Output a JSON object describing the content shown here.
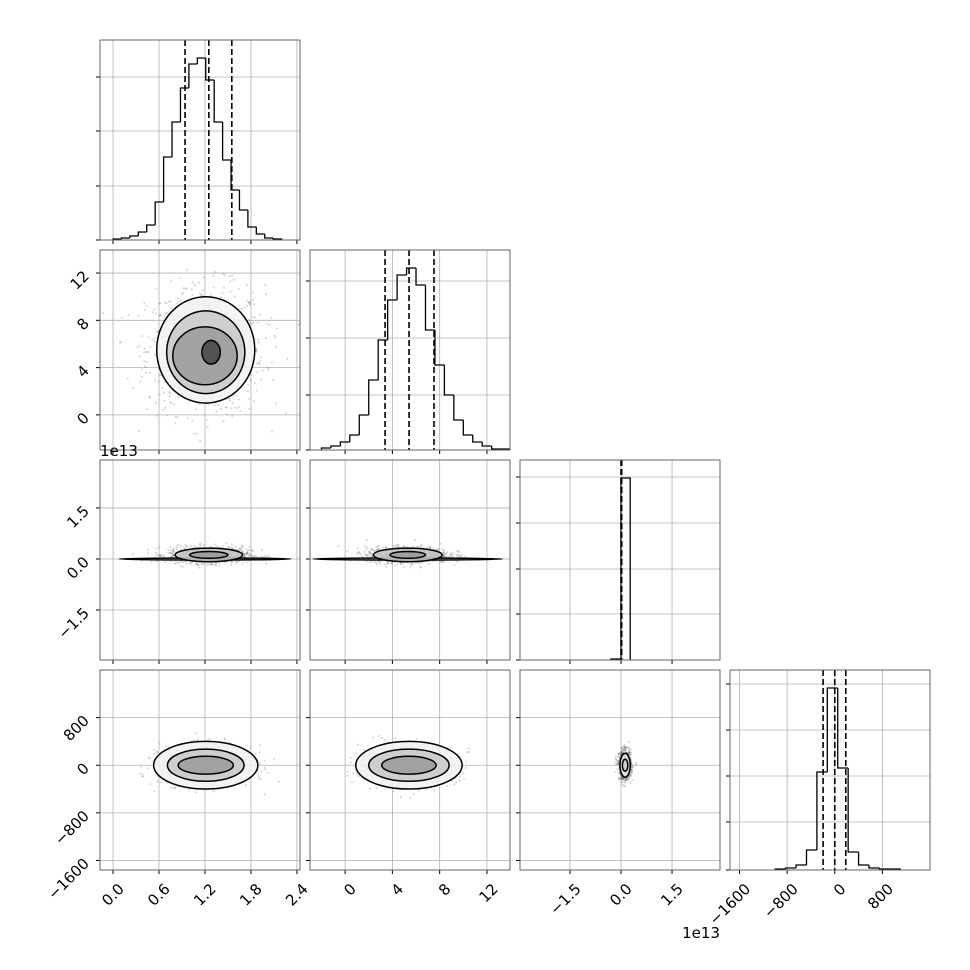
{
  "chart_data": {
    "type": "corner",
    "params": [
      {
        "lim": [
          -0.17,
          2.44
        ],
        "ticks": [
          {
            "value": 0,
            "label": "0.0"
          },
          0.6,
          1.2,
          1.8,
          2.4
        ]
      },
      {
        "lim": [
          -2.97,
          13.95
        ],
        "ticks": [
          0,
          4,
          8,
          12
        ]
      },
      {
        "lim": [
          -2.97,
          2.91
        ],
        "ticks": [
          {
            "value": -1.5,
            "label": "−1.5"
          },
          {
            "value": 0,
            "label": "0.0"
          },
          1.5
        ],
        "offset": "1e13"
      },
      {
        "lim": [
          -1760,
          1600
        ],
        "ticks": [
          {
            "value": -1600,
            "label": "−1600"
          },
          {
            "value": -800,
            "label": "−800"
          },
          0,
          800
        ]
      }
    ],
    "histograms": [
      {
        "bins": [
          0.0,
          0.11,
          0.22,
          0.33,
          0.44,
          0.55,
          0.66,
          0.77,
          0.88,
          0.99,
          1.1,
          1.21,
          1.32,
          1.43,
          1.54,
          1.65,
          1.76,
          1.87,
          1.98,
          2.09,
          2.2
        ],
        "counts": [
          1,
          2,
          4,
          8,
          15,
          38,
          83,
          118,
          152,
          176,
          182,
          160,
          118,
          80,
          50,
          30,
          13,
          6,
          2,
          1
        ],
        "quantiles": [
          0.94,
          1.25,
          1.55
        ],
        "ylim": [
          0,
          200
        ],
        "yticks": [
          0,
          54,
          109,
          163
        ]
      },
      {
        "bins": [
          -2.0,
          -1.2,
          -0.4,
          0.4,
          1.2,
          2.0,
          2.8,
          3.6,
          4.4,
          5.2,
          6.0,
          6.8,
          7.6,
          8.4,
          9.2,
          10.0,
          10.8,
          11.6,
          12.4,
          13.2,
          14.0
        ],
        "counts": [
          2,
          4,
          8,
          15,
          35,
          70,
          110,
          150,
          175,
          182,
          165,
          120,
          85,
          55,
          30,
          15,
          8,
          4,
          1,
          1
        ],
        "quantiles": [
          3.38,
          5.41,
          7.52
        ],
        "ylim": [
          0,
          200
        ],
        "yticks": [
          0,
          55,
          112,
          169
        ]
      },
      {
        "bins": [
          -0.3,
          0.0,
          0.27
        ],
        "counts": [
          1,
          182
        ],
        "quantiles": [
          0.0,
          0.01,
          0.02
        ],
        "ylim": [
          0,
          200
        ],
        "yticks": [
          0,
          46,
          91,
          137,
          183
        ]
      },
      {
        "bins": [
          -1000,
          -825,
          -650,
          -475,
          -300,
          -125,
          50,
          225,
          400,
          575,
          750,
          925,
          1100
        ],
        "counts": [
          1,
          2,
          5,
          20,
          98,
          182,
          102,
          18,
          5,
          2,
          1,
          1
        ],
        "quantiles": [
          -196,
          0,
          185
        ],
        "ylim": [
          0,
          200
        ],
        "yticks": [
          0,
          48,
          94,
          140,
          186
        ]
      }
    ],
    "contours": [
      {
        "x_param": 0,
        "y_param": 1,
        "levels": [
          {
            "cx": 1.21,
            "cy": 5.5,
            "rx": 0.64,
            "ry": 4.5
          },
          {
            "cx": 1.21,
            "cy": 5.3,
            "rx": 0.51,
            "ry": 3.5
          },
          {
            "cx": 1.2,
            "cy": 5.0,
            "rx": 0.42,
            "ry": 2.45
          },
          {
            "cx": 1.28,
            "cy": 5.3,
            "rx": 0.12,
            "ry": 1.0
          }
        ]
      },
      {
        "x_param": 0,
        "y_param": 2,
        "levels": [
          {
            "cx": 1.2,
            "cy": 0.0,
            "rx": 1.12,
            "ry": 0.03
          },
          {
            "cx": 1.25,
            "cy": 0.12,
            "rx": 0.44,
            "ry": 0.2
          },
          {
            "cx": 1.25,
            "cy": 0.12,
            "rx": 0.25,
            "ry": 0.1
          }
        ]
      },
      {
        "x_param": 1,
        "y_param": 2,
        "levels": [
          {
            "cx": 5.3,
            "cy": 0.0,
            "rx": 8.0,
            "ry": 0.03
          },
          {
            "cx": 5.3,
            "cy": 0.12,
            "rx": 2.9,
            "ry": 0.2
          },
          {
            "cx": 5.3,
            "cy": 0.12,
            "rx": 1.5,
            "ry": 0.1
          }
        ]
      },
      {
        "x_param": 0,
        "y_param": 3,
        "levels": [
          {
            "cx": 1.21,
            "cy": 0,
            "rx": 0.68,
            "ry": 400
          },
          {
            "cx": 1.21,
            "cy": 0,
            "rx": 0.5,
            "ry": 270
          },
          {
            "cx": 1.21,
            "cy": 0,
            "rx": 0.36,
            "ry": 150
          }
        ]
      },
      {
        "x_param": 1,
        "y_param": 3,
        "levels": [
          {
            "cx": 5.4,
            "cy": 0,
            "rx": 4.5,
            "ry": 400
          },
          {
            "cx": 5.4,
            "cy": 0,
            "rx": 3.4,
            "ry": 270
          },
          {
            "cx": 5.4,
            "cy": 0,
            "rx": 2.3,
            "ry": 150
          }
        ]
      },
      {
        "x_param": 2,
        "y_param": 3,
        "levels": [
          {
            "cx": 0.12,
            "cy": 0,
            "rx": 0.15,
            "ry": 200
          },
          {
            "cx": 0.12,
            "cy": 0,
            "rx": 0.08,
            "ry": 100
          }
        ]
      }
    ]
  }
}
